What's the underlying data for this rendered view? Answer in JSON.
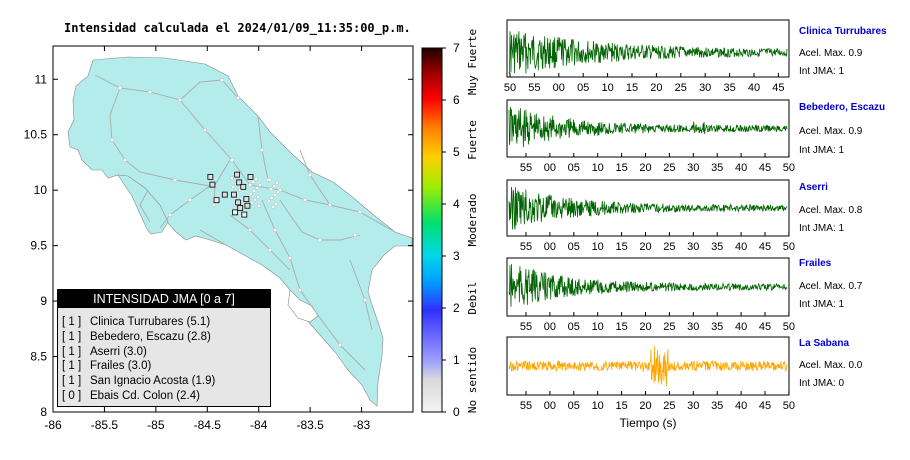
{
  "map": {
    "title": "Intensidad calculada el 2024/01/09_11:35:00_p.m.",
    "x_ticks": [
      "-86",
      "-85.5",
      "-85",
      "-84.5",
      "-84",
      "-83.5",
      "-83"
    ],
    "y_ticks": [
      "11",
      "10.5",
      "10",
      "9.5",
      "9",
      "8.5",
      "8"
    ],
    "land_color": "#b4ecec",
    "legend": {
      "title": "INTENSIDAD JMA [0 a 7]",
      "items": [
        {
          "level": "[ 1 ]",
          "label": "Clinica Turrubares (5.1)"
        },
        {
          "level": "[ 1 ]",
          "label": "Bebedero, Escazu (2.8)"
        },
        {
          "level": "[ 1 ]",
          "label": "Aserri (3.0)"
        },
        {
          "level": "[ 1 ]",
          "label": "Frailes (3.0)"
        },
        {
          "level": "[ 1 ]",
          "label": "San Ignacio Acosta (1.9)"
        },
        {
          "level": "[ 0 ]",
          "label": "Ebais Cd. Colon (2.4)"
        }
      ]
    }
  },
  "colorbar": {
    "ticks": [
      "0",
      "1",
      "2",
      "3",
      "4",
      "5",
      "6",
      "7"
    ],
    "labels": [
      "No sentido",
      "Debil",
      "Moderado",
      "Fuerte",
      "Muy Fuerte"
    ],
    "colors": [
      "#f2f2f2",
      "#7070ff",
      "#00d0ff",
      "#00e070",
      "#e0e000",
      "#ff9000",
      "#ff0000",
      "#1a0000"
    ]
  },
  "stations": [
    {
      "name": "Clinica Turrubares",
      "accel": "Acel. Max. 0.9",
      "jma": "Int JMA: 1",
      "color": "#006400",
      "ticks": [
        "50",
        "55",
        "00",
        "05",
        "10",
        "15",
        "20",
        "25",
        "30",
        "35",
        "40",
        "45"
      ]
    },
    {
      "name": "Bebedero, Escazu",
      "accel": "Acel. Max. 0.9",
      "jma": "Int JMA: 1",
      "color": "#006400",
      "ticks": [
        "55",
        "00",
        "05",
        "10",
        "15",
        "20",
        "25",
        "30",
        "35",
        "40",
        "45",
        "50"
      ]
    },
    {
      "name": "Aserri",
      "accel": "Acel. Max. 0.8",
      "jma": "Int JMA: 1",
      "color": "#006400",
      "ticks": [
        "55",
        "00",
        "05",
        "10",
        "15",
        "20",
        "25",
        "30",
        "35",
        "40",
        "45",
        "50"
      ]
    },
    {
      "name": "Frailes",
      "accel": "Acel. Max. 0.7",
      "jma": "Int JMA: 1",
      "color": "#006400",
      "ticks": [
        "55",
        "00",
        "05",
        "10",
        "15",
        "20",
        "25",
        "30",
        "35",
        "40",
        "45",
        "50"
      ]
    },
    {
      "name": "La Sabana",
      "accel": "Acel. Max. 0.0",
      "jma": "Int JMA: 0",
      "color": "#ffa500",
      "ticks": [
        "55",
        "00",
        "05",
        "10",
        "15",
        "20",
        "25",
        "30",
        "35",
        "40",
        "45",
        "50"
      ]
    }
  ],
  "xlabel": "Tiempo (s)",
  "chart_data": [
    {
      "type": "scatter",
      "title": "Intensidad calculada el 2024/01/09_11:35:00_p.m.",
      "xlim": [
        -86,
        -82.5
      ],
      "ylim": [
        8,
        11.3
      ],
      "series": [
        {
          "name": "[ 1 ]",
          "points": [
            [
              -84.47,
              10.12
            ],
            [
              -84.45,
              10.05
            ],
            [
              -84.21,
              10.14
            ],
            [
              -84.19,
              10.07
            ],
            [
              -84.15,
              10.03
            ],
            [
              -84.08,
              10.12
            ],
            [
              -84.33,
              9.96
            ],
            [
              -84.24,
              9.96
            ],
            [
              -84.2,
              9.89
            ],
            [
              -84.12,
              9.92
            ],
            [
              -84.18,
              9.84
            ],
            [
              -84.11,
              9.86
            ]
          ]
        },
        {
          "name": "[ 0 ]",
          "points": [
            [
              -84.41,
              9.91
            ],
            [
              -84.23,
              9.8
            ],
            [
              -84.14,
              9.78
            ]
          ]
        }
      ]
    },
    {
      "type": "line",
      "title": "Clinica Turrubares",
      "xlabel": "Tiempo (s)",
      "max_accel": 0.9,
      "jma_intensity": 1
    },
    {
      "type": "line",
      "title": "Bebedero, Escazu",
      "xlabel": "Tiempo (s)",
      "max_accel": 0.9,
      "jma_intensity": 1
    },
    {
      "type": "line",
      "title": "Aserri",
      "xlabel": "Tiempo (s)",
      "max_accel": 0.8,
      "jma_intensity": 1
    },
    {
      "type": "line",
      "title": "Frailes",
      "xlabel": "Tiempo (s)",
      "max_accel": 0.7,
      "jma_intensity": 1
    },
    {
      "type": "line",
      "title": "La Sabana",
      "xlabel": "Tiempo (s)",
      "max_accel": 0.0,
      "jma_intensity": 0
    }
  ]
}
